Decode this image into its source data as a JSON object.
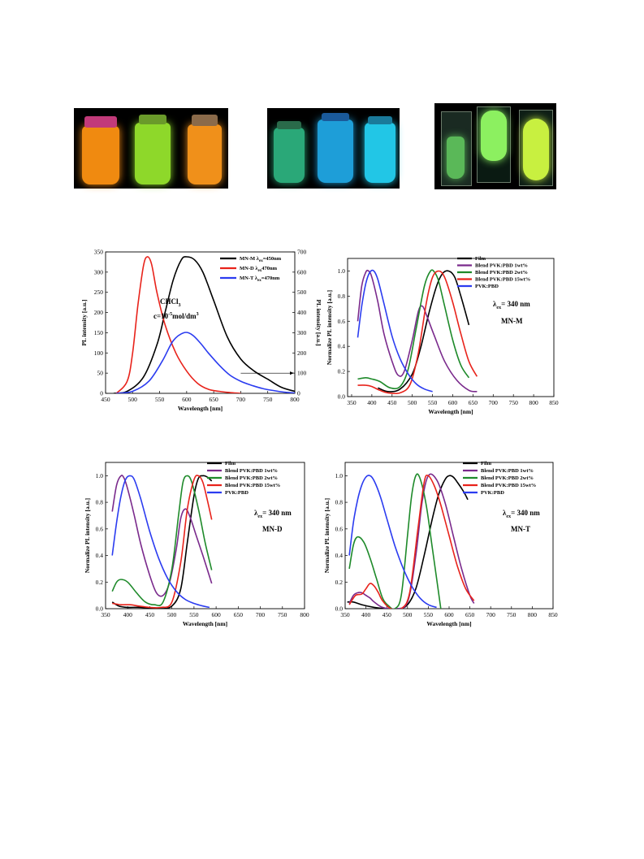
{
  "photos": [
    {
      "name": "orange-green-vials",
      "vials": [
        "#f08a10",
        "#8ed82a",
        "#f0901a"
      ]
    },
    {
      "name": "blue-cyan-vials",
      "vials": [
        "#2aa878",
        "#1e9ed8",
        "#22c6e6"
      ]
    },
    {
      "name": "green-films",
      "vials": [
        "#5ab858",
        "#8cf060",
        "#c8f040"
      ]
    }
  ],
  "chart_data": [
    {
      "type": "line",
      "id": "chart-a",
      "xlabel": "Wavelength [nm]",
      "ylabel": "PL intensity [a.u.]",
      "ylabel_right": "PL intensity [a.u.]",
      "xlim": [
        450,
        800
      ],
      "ylim": [
        0,
        350
      ],
      "ylim_right": [
        0,
        700
      ],
      "xticks": [
        450,
        500,
        550,
        600,
        650,
        700,
        750,
        800
      ],
      "yticks": [
        0,
        50,
        100,
        150,
        200,
        250,
        300,
        350
      ],
      "yticks_right": [
        0,
        100,
        200,
        300,
        400,
        500,
        600,
        700
      ],
      "legend": "top-right",
      "annotations": [
        "CHCl",
        "3",
        "c=10",
        "-5",
        "mol/dm",
        "3"
      ],
      "series": [
        {
          "name": "MN-M",
          "lambda": "ex",
          "exc": "=450nm",
          "color": "#000000",
          "x": [
            465,
            490,
            520,
            545,
            560,
            575,
            590,
            600,
            615,
            630,
            650,
            675,
            700,
            725,
            750,
            775,
            800
          ],
          "y": [
            0,
            5,
            40,
            120,
            200,
            280,
            330,
            338,
            330,
            300,
            230,
            140,
            85,
            55,
            35,
            15,
            5
          ]
        },
        {
          "name": "MN-D",
          "lambda": "ex",
          "exc": "470nm",
          "color": "#e8231b",
          "x": [
            470,
            490,
            500,
            510,
            520,
            527,
            535,
            545,
            560,
            580,
            600,
            620,
            640,
            660,
            680,
            700
          ],
          "y": [
            0,
            30,
            100,
            220,
            315,
            338,
            320,
            250,
            170,
            100,
            55,
            25,
            10,
            5,
            2,
            0
          ]
        },
        {
          "name": "MN-T",
          "lambda": "ex",
          "exc": "=470nm",
          "color": "#2b3cf0",
          "x": [
            470,
            500,
            530,
            555,
            575,
            595,
            610,
            625,
            640,
            660,
            680,
            700,
            720,
            740,
            760,
            780,
            800
          ],
          "y": [
            0,
            5,
            30,
            80,
            130,
            150,
            145,
            125,
            100,
            70,
            45,
            30,
            20,
            12,
            7,
            3,
            1
          ]
        }
      ]
    },
    {
      "type": "line",
      "id": "chart-m",
      "xlabel": "Wavelength [nm]",
      "ylabel": "Normalize PL intensity [a.u.]",
      "xlim": [
        340,
        850
      ],
      "ylim": [
        0.0,
        1.1
      ],
      "xticks": [
        350,
        400,
        450,
        500,
        550,
        600,
        650,
        700,
        750,
        800,
        850
      ],
      "yticks": [
        0.0,
        0.2,
        0.4,
        0.6,
        0.8,
        1.0
      ],
      "legend": "top-right",
      "annotations": [
        "λ",
        "ex",
        "= 340 nm",
        "MN-M"
      ],
      "series": [
        {
          "name": "Film",
          "color": "#000000",
          "x": [
            415,
            440,
            470,
            500,
            520,
            540,
            560,
            575,
            590,
            605,
            620,
            640
          ],
          "y": [
            0.07,
            0.04,
            0.06,
            0.18,
            0.38,
            0.65,
            0.88,
            0.98,
            1.0,
            0.95,
            0.8,
            0.57
          ]
        },
        {
          "name": "Blend PVK:PBD 1wt%",
          "color": "#7a2a8c",
          "x": [
            365,
            375,
            385,
            392,
            400,
            415,
            430,
            450,
            465,
            480,
            500,
            515,
            525,
            535,
            555,
            580,
            610,
            640,
            660
          ],
          "y": [
            0.6,
            0.88,
            0.99,
            1.0,
            0.95,
            0.75,
            0.5,
            0.28,
            0.17,
            0.2,
            0.45,
            0.68,
            0.72,
            0.65,
            0.48,
            0.28,
            0.13,
            0.05,
            0.04
          ]
        },
        {
          "name": "Blend PVK:PBD 2wt%",
          "color": "#1e8a2a",
          "x": [
            365,
            385,
            400,
            420,
            445,
            470,
            490,
            510,
            530,
            545,
            555,
            565,
            580,
            600,
            620,
            640
          ],
          "y": [
            0.14,
            0.15,
            0.14,
            0.12,
            0.07,
            0.08,
            0.22,
            0.55,
            0.88,
            1.0,
            0.99,
            0.92,
            0.72,
            0.45,
            0.25,
            0.15
          ]
        },
        {
          "name": "Blend PVK:PBD 15wt%",
          "color": "#e8231b",
          "x": [
            365,
            385,
            400,
            420,
            440,
            470,
            495,
            515,
            535,
            550,
            565,
            580,
            600,
            620,
            640,
            660
          ],
          "y": [
            0.09,
            0.09,
            0.08,
            0.05,
            0.03,
            0.03,
            0.1,
            0.35,
            0.75,
            0.95,
            1.0,
            0.95,
            0.75,
            0.5,
            0.28,
            0.16
          ]
        },
        {
          "name": "PVK:PBD",
          "color": "#2b3cf0",
          "x": [
            365,
            375,
            385,
            395,
            405,
            415,
            430,
            450,
            470,
            490,
            510,
            530,
            550
          ],
          "y": [
            0.47,
            0.72,
            0.9,
            0.99,
            1.0,
            0.93,
            0.74,
            0.48,
            0.3,
            0.18,
            0.1,
            0.06,
            0.04
          ]
        }
      ]
    },
    {
      "type": "line",
      "id": "chart-d",
      "xlabel": "Wavelength [nm]",
      "ylabel": "Normalize PL intensity [a.u.]",
      "xlim": [
        350,
        800
      ],
      "ylim": [
        0.0,
        1.1
      ],
      "xticks": [
        350,
        400,
        450,
        500,
        550,
        600,
        650,
        700,
        750,
        800
      ],
      "yticks": [
        0.0,
        0.2,
        0.4,
        0.6,
        0.8,
        1.0
      ],
      "legend": "top-right",
      "annotations": [
        "λ",
        "ex",
        "= 340 nm",
        "MN-D"
      ],
      "series": [
        {
          "name": "Film",
          "color": "#000000",
          "x": [
            365,
            380,
            400,
            430,
            470,
            500,
            520,
            535,
            550,
            560,
            570,
            580,
            590
          ],
          "y": [
            0.05,
            0.02,
            0.01,
            0.01,
            0.0,
            0.02,
            0.15,
            0.5,
            0.85,
            0.98,
            1.0,
            0.99,
            0.96
          ]
        },
        {
          "name": "Blend PVK:PBD 1wt%",
          "color": "#7a2a8c",
          "x": [
            365,
            375,
            385,
            392,
            400,
            415,
            430,
            450,
            465,
            480,
            495,
            510,
            520,
            530,
            540,
            555,
            570,
            590
          ],
          "y": [
            0.73,
            0.93,
            1.0,
            0.98,
            0.9,
            0.7,
            0.48,
            0.25,
            0.12,
            0.1,
            0.2,
            0.45,
            0.68,
            0.75,
            0.7,
            0.55,
            0.4,
            0.19
          ]
        },
        {
          "name": "Blend PVK:PBD 2wt%",
          "color": "#1e8a2a",
          "x": [
            365,
            375,
            385,
            400,
            420,
            440,
            460,
            480,
            500,
            515,
            525,
            535,
            545,
            560,
            575,
            590
          ],
          "y": [
            0.13,
            0.2,
            0.22,
            0.2,
            0.12,
            0.05,
            0.03,
            0.05,
            0.3,
            0.7,
            0.95,
            1.0,
            0.95,
            0.75,
            0.5,
            0.29
          ]
        },
        {
          "name": "Blend PVK:PBD 15wt%",
          "color": "#e8231b",
          "x": [
            365,
            385,
            405,
            425,
            450,
            475,
            500,
            520,
            535,
            550,
            560,
            570,
            580,
            590
          ],
          "y": [
            0.04,
            0.03,
            0.03,
            0.02,
            0.01,
            0.01,
            0.05,
            0.35,
            0.75,
            0.97,
            1.0,
            0.95,
            0.82,
            0.67
          ]
        },
        {
          "name": "PVK:PBD",
          "color": "#2b3cf0",
          "x": [
            365,
            375,
            385,
            395,
            405,
            415,
            430,
            450,
            470,
            490,
            510,
            530,
            550,
            570,
            585
          ],
          "y": [
            0.4,
            0.65,
            0.85,
            0.97,
            1.0,
            0.97,
            0.82,
            0.58,
            0.38,
            0.23,
            0.13,
            0.07,
            0.04,
            0.02,
            0.01
          ]
        }
      ]
    },
    {
      "type": "line",
      "id": "chart-t",
      "xlabel": "Wavelength [nm]",
      "ylabel": "Normalize PL intensity [a.u.]",
      "xlim": [
        350,
        850
      ],
      "ylim": [
        0.0,
        1.1
      ],
      "xticks": [
        350,
        400,
        450,
        500,
        550,
        600,
        650,
        700,
        750,
        800,
        850
      ],
      "yticks": [
        0.0,
        0.2,
        0.4,
        0.6,
        0.8,
        1.0
      ],
      "legend": "top-right",
      "annotations": [
        "λ",
        "ex",
        "= 340 nm",
        "MN-T"
      ],
      "series": [
        {
          "name": "Film",
          "color": "#000000",
          "x": [
            355,
            370,
            390,
            420,
            450,
            480,
            500,
            520,
            540,
            560,
            575,
            590,
            600,
            610,
            620,
            635,
            645
          ],
          "y": [
            0.05,
            0.05,
            0.03,
            0.01,
            0.0,
            0.0,
            0.03,
            0.15,
            0.4,
            0.68,
            0.86,
            0.97,
            1.0,
            0.99,
            0.95,
            0.88,
            0.82
          ]
        },
        {
          "name": "Blend PVK:PBD 1wt%",
          "color": "#7a2a8c",
          "x": [
            360,
            370,
            380,
            390,
            400,
            410,
            420,
            440,
            470,
            500,
            520,
            535,
            550,
            570,
            590,
            610,
            630,
            650,
            660
          ],
          "y": [
            0.04,
            0.1,
            0.12,
            0.12,
            0.1,
            0.08,
            0.05,
            0.01,
            0.0,
            0.05,
            0.4,
            0.8,
            1.0,
            0.97,
            0.8,
            0.55,
            0.3,
            0.1,
            0.04
          ]
        },
        {
          "name": "Blend PVK:PBD 2wt%",
          "color": "#1e8a2a",
          "x": [
            360,
            370,
            380,
            395,
            410,
            425,
            440,
            455,
            470,
            485,
            500,
            510,
            520,
            530,
            545,
            560,
            580
          ],
          "y": [
            0.3,
            0.48,
            0.54,
            0.5,
            0.38,
            0.23,
            0.08,
            0.02,
            0.0,
            0.1,
            0.55,
            0.85,
            1.0,
            0.98,
            0.78,
            0.45,
            0.0
          ]
        },
        {
          "name": "Blend PVK:PBD 15wt%",
          "color": "#e8231b",
          "x": [
            360,
            375,
            390,
            400,
            410,
            420,
            430,
            440,
            460,
            485,
            505,
            525,
            540,
            550,
            565,
            580,
            600,
            620,
            640,
            660
          ],
          "y": [
            0.03,
            0.1,
            0.11,
            0.15,
            0.19,
            0.17,
            0.12,
            0.06,
            0.0,
            0.0,
            0.12,
            0.6,
            0.95,
            1.0,
            0.92,
            0.78,
            0.55,
            0.32,
            0.15,
            0.06
          ]
        },
        {
          "name": "PVK:PBD",
          "color": "#2b3cf0",
          "x": [
            360,
            370,
            380,
            390,
            400,
            410,
            420,
            435,
            450,
            470,
            490,
            510,
            530,
            550,
            570
          ],
          "y": [
            0.4,
            0.65,
            0.82,
            0.93,
            0.99,
            1.0,
            0.96,
            0.84,
            0.68,
            0.47,
            0.3,
            0.17,
            0.08,
            0.03,
            0.01
          ]
        }
      ]
    }
  ]
}
